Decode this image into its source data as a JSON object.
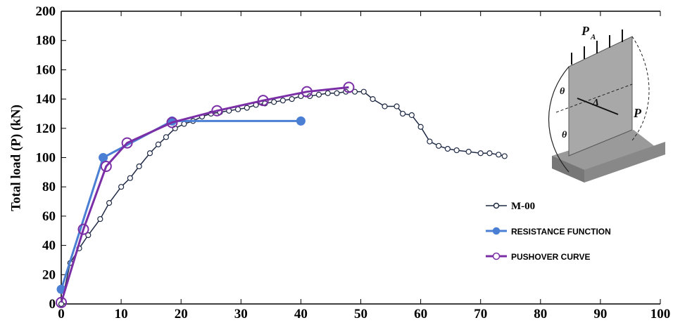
{
  "chart_data": {
    "type": "line",
    "ylabel": "Total load (P) (kN)",
    "xlim": [
      0,
      100
    ],
    "xticks": [
      0,
      10,
      20,
      30,
      40,
      50,
      60,
      70,
      80,
      90,
      100
    ],
    "ylim": [
      0,
      200
    ],
    "yticks": [
      0,
      20,
      40,
      60,
      80,
      100,
      120,
      140,
      160,
      180,
      200
    ],
    "legend": "center-right",
    "annotations": [
      "P",
      "A",
      "θ",
      "θ",
      "Δ",
      "P"
    ],
    "series": [
      {
        "name": "M-00",
        "color": "#1f2a44",
        "marker": "open",
        "x": [
          0,
          1.5,
          3,
          4.5,
          6.5,
          8,
          10,
          11.5,
          13,
          14.8,
          16.2,
          17.5,
          19,
          20.5,
          22,
          23.5,
          25,
          26.5,
          28,
          29.5,
          31,
          32.5,
          34,
          35.5,
          37,
          38.5,
          40,
          41.5,
          43,
          44.5,
          46,
          47.5,
          49,
          50.5,
          52,
          54,
          56,
          57,
          58.5,
          60,
          61.5,
          63,
          64.5,
          66,
          68,
          70,
          71.5,
          73,
          74
        ],
        "values": [
          0,
          28,
          38,
          47,
          58,
          69,
          80,
          86,
          94,
          103,
          109,
          114,
          120,
          123,
          125,
          128,
          130,
          131,
          132,
          133,
          134,
          136,
          137,
          138,
          139,
          140,
          142,
          142,
          143,
          144,
          144,
          145,
          145,
          145,
          140,
          135,
          135,
          130,
          129,
          121,
          111,
          108,
          106,
          105,
          104,
          103,
          103,
          102,
          101
        ]
      },
      {
        "name": "RESISTANCE FUNCTION",
        "color": "#4a7fd4",
        "marker": "filled",
        "x": [
          0,
          7,
          18.5,
          40
        ],
        "values": [
          10,
          100,
          125,
          125
        ]
      },
      {
        "name": "PUSHOVER CURVE",
        "color": "#7b2fa6",
        "marker": "open-large",
        "x": [
          0,
          3.7,
          7.5,
          11,
          18.5,
          26,
          33.7,
          41,
          48
        ],
        "values": [
          1,
          51,
          94,
          110,
          124,
          132,
          139,
          145,
          148
        ]
      }
    ]
  }
}
